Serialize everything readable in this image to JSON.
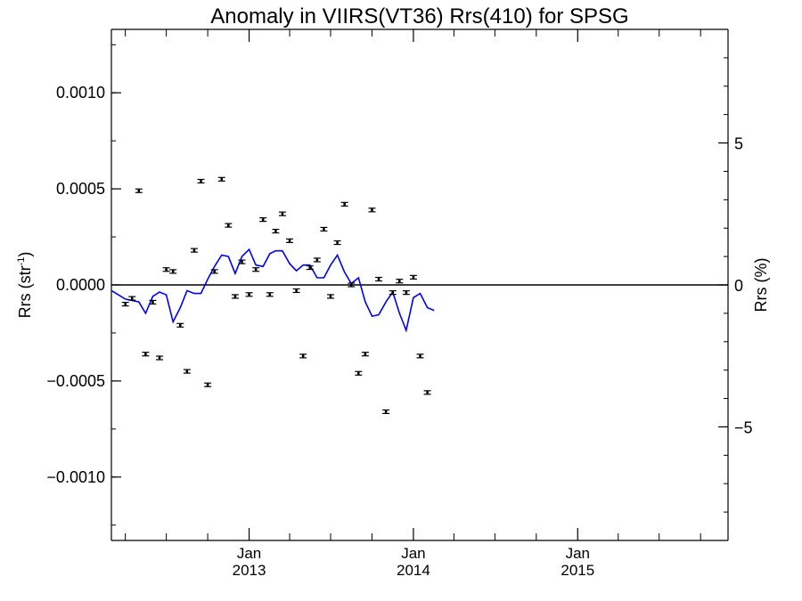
{
  "chart_data": {
    "type": "scatter",
    "title": "Anomaly in VIIRS(VT36) Rrs(410) for SPSG",
    "ylabel_left": "Rrs (str",
    "ylabel_left_sup": "-1",
    "ylabel_left_close": ")",
    "ylabel_right": "Rrs (%)",
    "x_range": [
      "2012-03-01",
      "2015-12-01"
    ],
    "ylim_left": [
      -0.00133,
      0.00133
    ],
    "ylim_right": [
      -9,
      9
    ],
    "left_ticks": [
      {
        "value": 0.001,
        "label": "0.0010"
      },
      {
        "value": 0.0005,
        "label": "0.0005"
      },
      {
        "value": 0.0,
        "label": "0.0000"
      },
      {
        "value": -0.0005,
        "label": "−0.0005"
      },
      {
        "value": -0.001,
        "label": "−0.0010"
      }
    ],
    "right_ticks": [
      {
        "value": 5,
        "label": "5"
      },
      {
        "value": 0,
        "label": "0"
      },
      {
        "value": -5,
        "label": "−5"
      }
    ],
    "x_ticks": [
      {
        "date": "2013-01-01",
        "month": "Jan",
        "year": "2013"
      },
      {
        "date": "2014-01-01",
        "month": "Jan",
        "year": "2014"
      },
      {
        "date": "2015-01-01",
        "month": "Jan",
        "year": "2015"
      }
    ],
    "zero_line": true,
    "grid": false,
    "colors": {
      "points": "#000000",
      "line": "#0000ff",
      "axes": "#000000"
    },
    "series": [
      {
        "kind": "error-bar points",
        "axis": "left",
        "points": [
          {
            "x": "2012-04-01",
            "y": -0.0001
          },
          {
            "x": "2012-04-16",
            "y": -7e-05
          },
          {
            "x": "2012-05-01",
            "y": 0.00049
          },
          {
            "x": "2012-05-16",
            "y": -0.00036
          },
          {
            "x": "2012-06-01",
            "y": -9e-05
          },
          {
            "x": "2012-06-16",
            "y": -0.00038
          },
          {
            "x": "2012-07-01",
            "y": 8e-05
          },
          {
            "x": "2012-07-16",
            "y": 7e-05
          },
          {
            "x": "2012-08-01",
            "y": -0.00021
          },
          {
            "x": "2012-08-16",
            "y": -0.00045
          },
          {
            "x": "2012-09-01",
            "y": 0.00018
          },
          {
            "x": "2012-09-16",
            "y": 0.00054
          },
          {
            "x": "2012-10-01",
            "y": -0.00052
          },
          {
            "x": "2012-10-16",
            "y": 7e-05
          },
          {
            "x": "2012-11-01",
            "y": 0.00055
          },
          {
            "x": "2012-11-16",
            "y": 0.00031
          },
          {
            "x": "2012-12-01",
            "y": -6e-05
          },
          {
            "x": "2012-12-16",
            "y": 0.00012
          },
          {
            "x": "2013-01-01",
            "y": -5e-05
          },
          {
            "x": "2013-01-16",
            "y": 8e-05
          },
          {
            "x": "2013-02-01",
            "y": 0.00034
          },
          {
            "x": "2013-02-16",
            "y": -5e-05
          },
          {
            "x": "2013-03-01",
            "y": 0.00028
          },
          {
            "x": "2013-03-16",
            "y": 0.00037
          },
          {
            "x": "2013-04-01",
            "y": 0.00023
          },
          {
            "x": "2013-04-16",
            "y": -3e-05
          },
          {
            "x": "2013-05-01",
            "y": -0.00037
          },
          {
            "x": "2013-05-16",
            "y": 9e-05
          },
          {
            "x": "2013-06-01",
            "y": 0.00013
          },
          {
            "x": "2013-06-16",
            "y": 0.00029
          },
          {
            "x": "2013-07-01",
            "y": -6e-05
          },
          {
            "x": "2013-07-16",
            "y": 0.00022
          },
          {
            "x": "2013-08-01",
            "y": 0.00042
          },
          {
            "x": "2013-08-16",
            "y": 0.0
          },
          {
            "x": "2013-09-01",
            "y": -0.00046
          },
          {
            "x": "2013-09-16",
            "y": -0.00036
          },
          {
            "x": "2013-10-01",
            "y": 0.00039
          },
          {
            "x": "2013-10-16",
            "y": 3e-05
          },
          {
            "x": "2013-11-01",
            "y": -0.00066
          },
          {
            "x": "2013-11-16",
            "y": -4e-05
          },
          {
            "x": "2013-12-01",
            "y": 2e-05
          },
          {
            "x": "2013-12-16",
            "y": -4e-05
          },
          {
            "x": "2014-01-01",
            "y": 4e-05
          },
          {
            "x": "2014-01-16",
            "y": -0.00037
          },
          {
            "x": "2014-02-01",
            "y": -0.00056
          }
        ]
      },
      {
        "kind": "line",
        "axis": "right",
        "points": [
          {
            "x": "2012-03-01",
            "y": -0.2
          },
          {
            "x": "2012-04-01",
            "y": -0.5
          },
          {
            "x": "2012-05-01",
            "y": -0.6
          },
          {
            "x": "2012-05-16",
            "y": -1.0
          },
          {
            "x": "2012-06-01",
            "y": -0.4
          },
          {
            "x": "2012-06-16",
            "y": -0.25
          },
          {
            "x": "2012-07-01",
            "y": -0.35
          },
          {
            "x": "2012-07-16",
            "y": -1.3
          },
          {
            "x": "2012-08-01",
            "y": -0.8
          },
          {
            "x": "2012-08-16",
            "y": -0.2
          },
          {
            "x": "2012-09-01",
            "y": -0.3
          },
          {
            "x": "2012-09-16",
            "y": -0.3
          },
          {
            "x": "2012-10-01",
            "y": 0.2
          },
          {
            "x": "2012-10-16",
            "y": 0.65
          },
          {
            "x": "2012-11-01",
            "y": 1.05
          },
          {
            "x": "2012-11-16",
            "y": 1.0
          },
          {
            "x": "2012-12-01",
            "y": 0.4
          },
          {
            "x": "2012-12-16",
            "y": 1.0
          },
          {
            "x": "2013-01-01",
            "y": 1.25
          },
          {
            "x": "2013-01-16",
            "y": 0.7
          },
          {
            "x": "2013-02-01",
            "y": 0.65
          },
          {
            "x": "2013-02-16",
            "y": 1.1
          },
          {
            "x": "2013-03-01",
            "y": 1.2
          },
          {
            "x": "2013-03-16",
            "y": 1.2
          },
          {
            "x": "2013-04-01",
            "y": 0.75
          },
          {
            "x": "2013-04-16",
            "y": 0.5
          },
          {
            "x": "2013-05-01",
            "y": 0.7
          },
          {
            "x": "2013-05-16",
            "y": 0.7
          },
          {
            "x": "2013-06-01",
            "y": 0.25
          },
          {
            "x": "2013-06-16",
            "y": 0.25
          },
          {
            "x": "2013-07-01",
            "y": 0.7
          },
          {
            "x": "2013-07-16",
            "y": 1.05
          },
          {
            "x": "2013-08-01",
            "y": 0.45
          },
          {
            "x": "2013-08-16",
            "y": 0.05
          },
          {
            "x": "2013-09-01",
            "y": 0.25
          },
          {
            "x": "2013-09-16",
            "y": -0.6
          },
          {
            "x": "2013-10-01",
            "y": -1.1
          },
          {
            "x": "2013-10-16",
            "y": -1.05
          },
          {
            "x": "2013-11-01",
            "y": -0.6
          },
          {
            "x": "2013-11-16",
            "y": -0.25
          },
          {
            "x": "2013-12-01",
            "y": -1.0
          },
          {
            "x": "2013-12-16",
            "y": -1.6
          },
          {
            "x": "2014-01-01",
            "y": -0.45
          },
          {
            "x": "2014-01-16",
            "y": -0.3
          },
          {
            "x": "2014-02-01",
            "y": -0.8
          },
          {
            "x": "2014-02-16",
            "y": -0.9
          }
        ]
      }
    ]
  }
}
